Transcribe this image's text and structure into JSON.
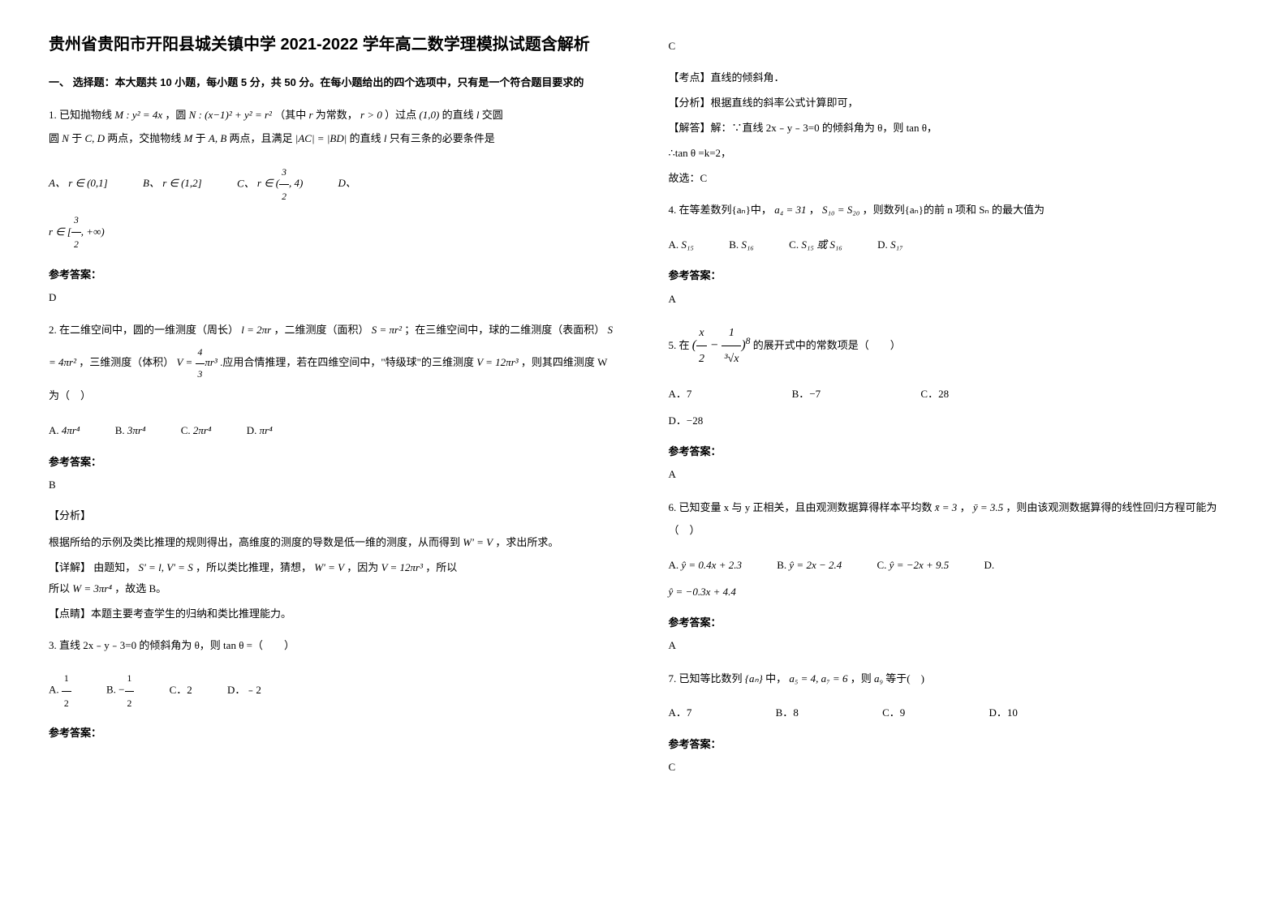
{
  "title": "贵州省贵阳市开阳县城关镇中学 2021-2022 学年高二数学理模拟试题含解析",
  "section1_header": "一、 选择题：本大题共 10 小题，每小题 5 分，共 50 分。在每小题给出的四个选项中，只有是一个符合题目要求的",
  "q1": {
    "text_1": "1. 已知抛物线",
    "formula_1": "M : y² = 4x",
    "text_2": "，圆",
    "formula_2": "N : (x−1)² + y² = r²",
    "text_3": "（其中",
    "formula_3": "r",
    "text_4": "为常数，",
    "formula_4": "r > 0",
    "text_5": "）过点",
    "formula_5": "(1,0)",
    "text_6": "的直线",
    "formula_6": "l",
    "text_7": "交圆",
    "formula_7": "N",
    "text_8": "于",
    "formula_8": "C, D",
    "text_9": "两点，交抛物线",
    "formula_9": "M",
    "text_10": "于",
    "formula_10": "A, B",
    "text_11": "两点，且满足",
    "formula_11": "|AC| = |BD|",
    "text_12": "的直线",
    "formula_12": "l",
    "text_13": "只有三条的必要条件是",
    "opt_a_label": "A、",
    "opt_a": "r ∈ (0,1]",
    "opt_b_label": "B、",
    "opt_b": "r ∈ (1,2]",
    "opt_c_label": "C、",
    "opt_c_num": "3",
    "opt_c_den": "2",
    "opt_c_text": ", 4",
    "opt_d_label": "D、",
    "opt_d_num": "3",
    "opt_d_den": "2",
    "opt_d_text": ", +∞",
    "answer_label": "参考答案：",
    "answer": "D"
  },
  "q2": {
    "text_1": "2. 在二维空间中，圆的一维测度（周长）",
    "formula_1": "l = 2πr",
    "text_2": "，二维测度（面积）",
    "formula_2": "S = πr²",
    "text_3": "；在三维空间中，球的二维测度（表面积）",
    "formula_3": "S = 4πr²",
    "text_4": "，三维测度（体积）",
    "formula_4_pre": "V = ",
    "formula_4_num": "4",
    "formula_4_den": "3",
    "formula_4_post": "πr³",
    "text_5": ".应用合情推理，若在四维空间中，\"特级球\"的三维测度",
    "formula_5": "V = 12πr³",
    "text_6": "，则其四维测度 W 为（　）",
    "opt_a_label": "A.",
    "opt_a": "4πr⁴",
    "opt_b_label": "B.",
    "opt_b": "3πr⁴",
    "opt_c_label": "C.",
    "opt_c": "2πr⁴",
    "opt_d_label": "D.",
    "opt_d": "πr⁴",
    "answer_label": "参考答案：",
    "answer": "B",
    "analysis_label": "【分析】",
    "analysis_1": "根据所给的示例及类比推理的规则得出，高维度的测度的导数是低一维的测度，从而得到",
    "analysis_1f": "W' = V",
    "analysis_1b": "，求出所求。",
    "detail_label": "【详解】",
    "detail_1": "由题知，",
    "detail_1f": "S' = l, V' = S",
    "detail_2": "，所以类比推理，猜想，",
    "detail_2f": "W' = V",
    "detail_3": "，因为",
    "detail_3f": "V = 12πr³",
    "detail_4": "，所以",
    "detail_4f": "W = 3πr⁴",
    "detail_5": "，故选 B。",
    "point_label": "【点睛】",
    "point": "本题主要考查学生的归纳和类比推理能力。"
  },
  "q3": {
    "text": "3. 直线 2x﹣y﹣3=0 的倾斜角为 θ，则 tan θ =（　　）",
    "opt_a_label": "A.",
    "opt_a_num": "1",
    "opt_a_den": "2",
    "opt_b_label": "B.",
    "opt_b_pre": "−",
    "opt_b_num": "1",
    "opt_b_den": "2",
    "opt_c_label": "C．",
    "opt_c": "2",
    "opt_d_label": "D．",
    "opt_d": "﹣2",
    "answer_label": "参考答案：",
    "answer": "C",
    "kp_label": "【考点】",
    "kp": "直线的倾斜角．",
    "fx_label": "【分析】",
    "fx": "根据直线的斜率公式计算即可，",
    "jd_label": "【解答】",
    "jd_1": "解：∵直线 2x﹣y﹣3=0 的倾斜角为 θ，则 tan θ，",
    "jd_2": "∴tan θ =k=2，",
    "jd_3": "故选：C"
  },
  "q4": {
    "text_1": "4. 在等差数列{aₙ}中，",
    "formula_1": "a₄ = 31",
    "text_2": "，",
    "formula_2": "S₁₀ = S₂₀",
    "text_3": "，则数列{aₙ}的前 n 项和 Sₙ 的最大值为",
    "opt_a_label": "A.",
    "opt_a": "S₁₅",
    "opt_b_label": "B.",
    "opt_b": "S₁₆",
    "opt_c_label": "C.",
    "opt_c": "S₁₅ 或 S₁₆",
    "opt_d_label": "D.",
    "opt_d": "S₁₇",
    "answer_label": "参考答案：",
    "answer": "A"
  },
  "q5": {
    "text_1": "5. 在",
    "formula_num1": "x",
    "formula_den1": "2",
    "formula_minus": " − ",
    "formula_num2": "1",
    "formula_den2": "³√x",
    "formula_exp": "8",
    "text_2": "的展开式中的常数项是（　　）",
    "opt_a_label": "A．",
    "opt_a": "7",
    "opt_b_label": "B．",
    "opt_b": "−7",
    "opt_c_label": "C．",
    "opt_c": "28",
    "opt_d_label": "D．",
    "opt_d": "−28",
    "answer_label": "参考答案：",
    "answer": "A"
  },
  "q6": {
    "text_1": "6. 已知变量 x 与 y 正相关，且由观测数据算得样本平均数",
    "formula_1": "x̄ = 3",
    "text_2": "，",
    "formula_2": "ȳ = 3.5",
    "text_3": "，则由该观测数据算得的线性回归方程可能为（　）",
    "opt_a_label": "A.",
    "opt_a": "ŷ = 0.4x + 2.3",
    "opt_b_label": "B.",
    "opt_b": "ŷ = 2x − 2.4",
    "opt_c_label": "C.",
    "opt_c": "ŷ = −2x + 9.5",
    "opt_d_label": "D.",
    "opt_d": "ŷ = −0.3x + 4.4",
    "answer_label": "参考答案：",
    "answer": "A"
  },
  "q7": {
    "text_1": "7. 已知等比数列",
    "formula_1": "{aₙ}",
    "text_2": "中，",
    "formula_2": "a₅ = 4, a₇ = 6",
    "text_3": "，则",
    "formula_3": "a₉",
    "text_4": "等于(　)",
    "opt_a_label": "A．",
    "opt_a": "7",
    "opt_b_label": "B．",
    "opt_b": "8",
    "opt_c_label": "C．",
    "opt_c": "9",
    "opt_d_label": "D．",
    "opt_d": "10",
    "answer_label": "参考答案：",
    "answer": "C"
  }
}
